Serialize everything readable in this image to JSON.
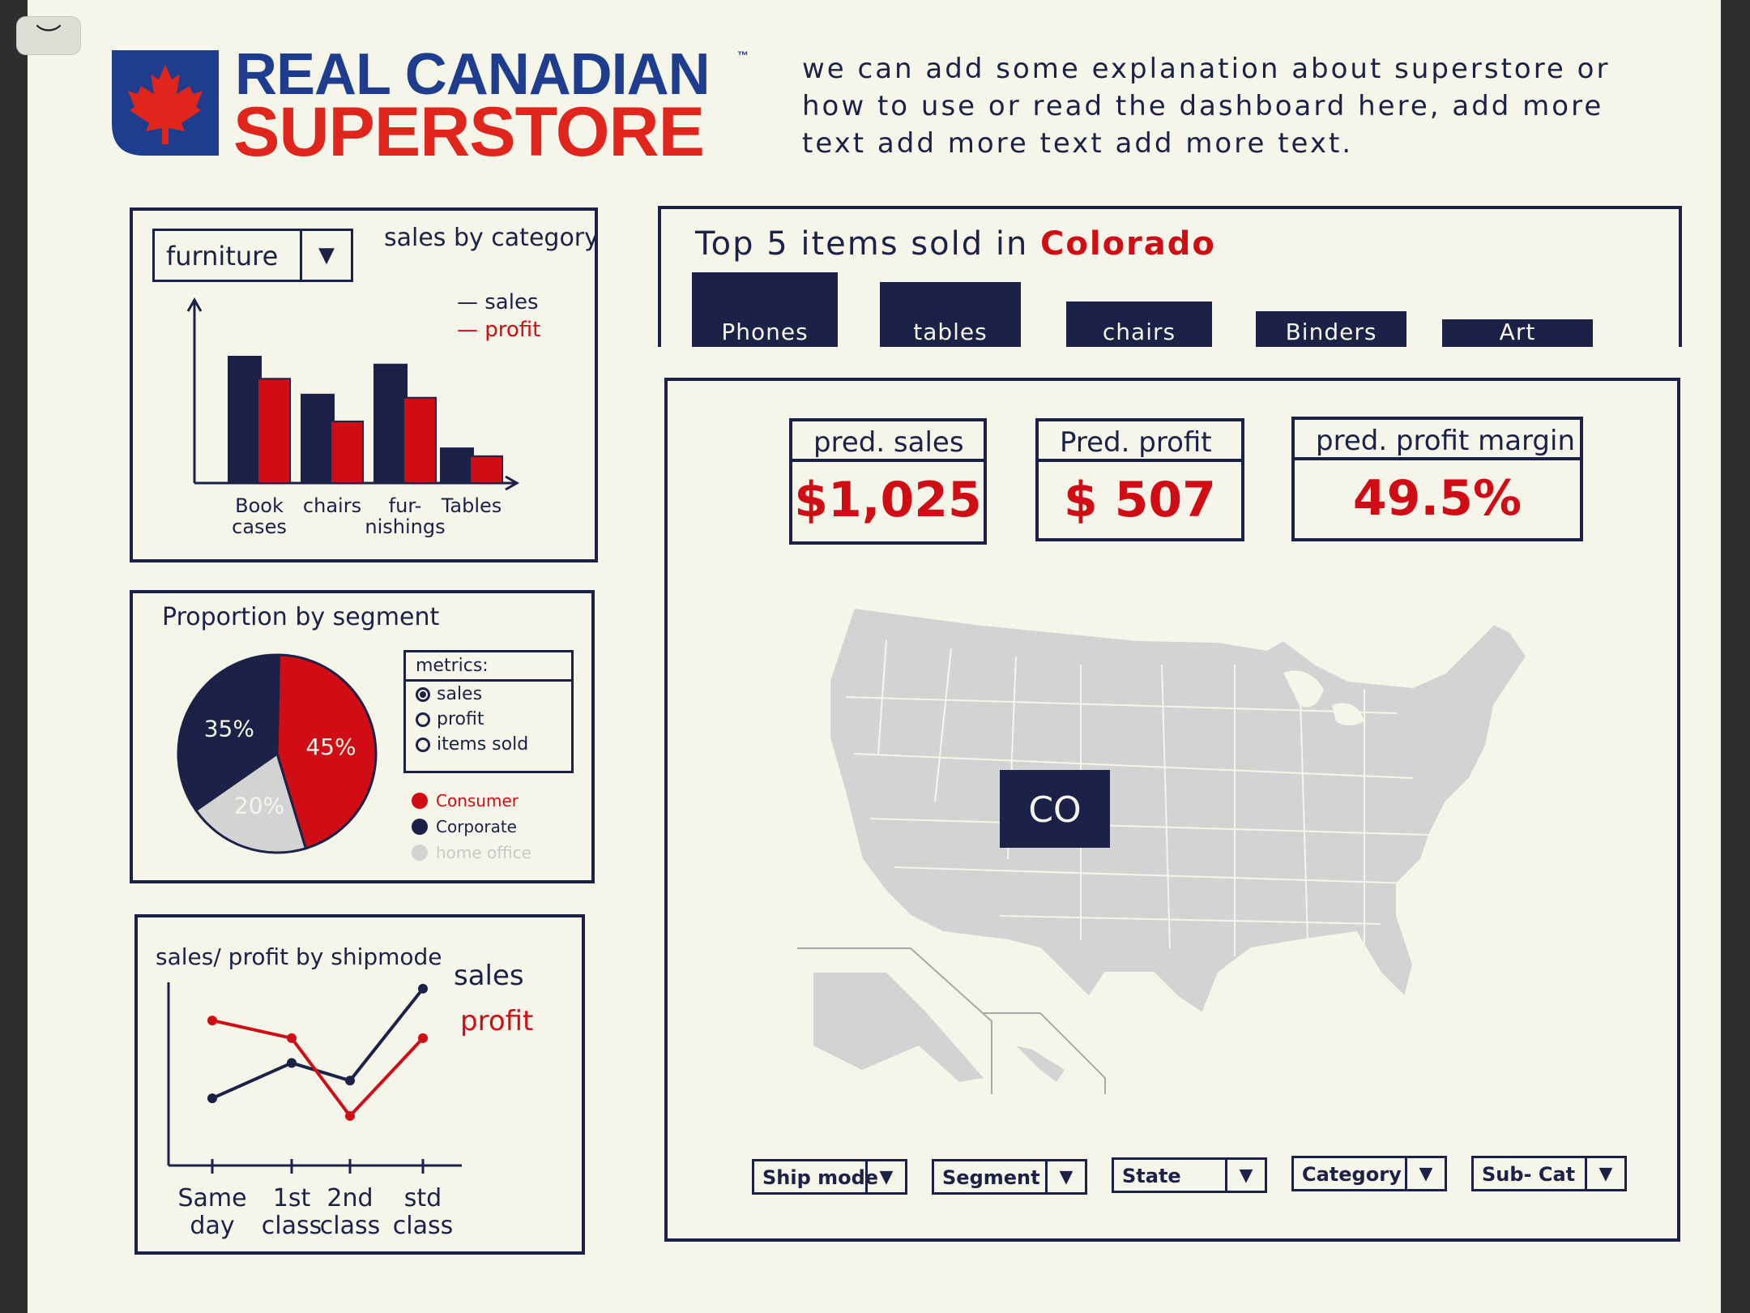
{
  "window": {
    "collapse_label": "︶"
  },
  "header": {
    "logo_line1": "REAL CANADIAN",
    "logo_tm": "™",
    "logo_line2": "SUPERSTORE",
    "intro_text": "we can add some explanation about superstore or how to use or read the dashboard here, add more text add more text add more text."
  },
  "category_panel": {
    "dropdown_value": "furniture",
    "title": "sales by category",
    "legend_sales": "— sales",
    "legend_profit": "— profit"
  },
  "segment_panel": {
    "title": "Proportion by segment",
    "metrics_title": "metrics:",
    "metrics_options": [
      "sales",
      "profit",
      "items sold"
    ],
    "selected_metric": "sales",
    "legend": [
      "Consumer",
      "Corporate",
      "home office"
    ]
  },
  "shipmode_panel": {
    "title": "sales/ profit by shipmode",
    "legend_sales": "sales",
    "legend_profit": "profit"
  },
  "top_items": {
    "title_prefix": "Top 5 items sold in",
    "state": "Colorado",
    "items": [
      "Phones",
      "tables",
      "chairs",
      "Binders",
      "Art"
    ]
  },
  "kpis": {
    "sales_label": "pred. sales",
    "sales_value": "$1,025",
    "profit_label": "Pred. profit",
    "profit_value": "$ 507",
    "margin_label": "pred. profit margin",
    "margin_value": "49.5%"
  },
  "map": {
    "highlight_state": "CO"
  },
  "filters": {
    "ship_mode": "Ship mode",
    "segment": "Segment",
    "state": "State",
    "category": "Category",
    "sub_cat": "Sub- Cat"
  },
  "colors": {
    "navy": "#1b2147",
    "red": "#d00d14",
    "grey": "#d3d3d3",
    "background": "#f6f5ea"
  },
  "chart_data": [
    {
      "type": "bar",
      "title": "sales by category",
      "categories": [
        "Book cases",
        "chairs",
        "fur- nishings",
        "Tables"
      ],
      "series": [
        {
          "name": "sales",
          "values": [
            80,
            56,
            75,
            22
          ]
        },
        {
          "name": "profit",
          "values": [
            66,
            39,
            54,
            17
          ]
        }
      ],
      "ylim": [
        0,
        100
      ],
      "legend_position": "top-right"
    },
    {
      "type": "pie",
      "title": "Proportion by segment",
      "labels": [
        "Consumer",
        "home office",
        "Corporate"
      ],
      "values": [
        45,
        20,
        35
      ],
      "value_labels": [
        "45%",
        "20%",
        "35%"
      ]
    },
    {
      "type": "line",
      "title": "sales/ profit by shipmode",
      "categories": [
        "Same day",
        "1st class",
        "2nd class",
        "std class"
      ],
      "series": [
        {
          "name": "sales",
          "values": [
            38,
            58,
            48,
            100
          ]
        },
        {
          "name": "profit",
          "values": [
            82,
            72,
            28,
            72
          ]
        }
      ],
      "ylim": [
        0,
        110
      ],
      "legend_position": "right"
    }
  ]
}
